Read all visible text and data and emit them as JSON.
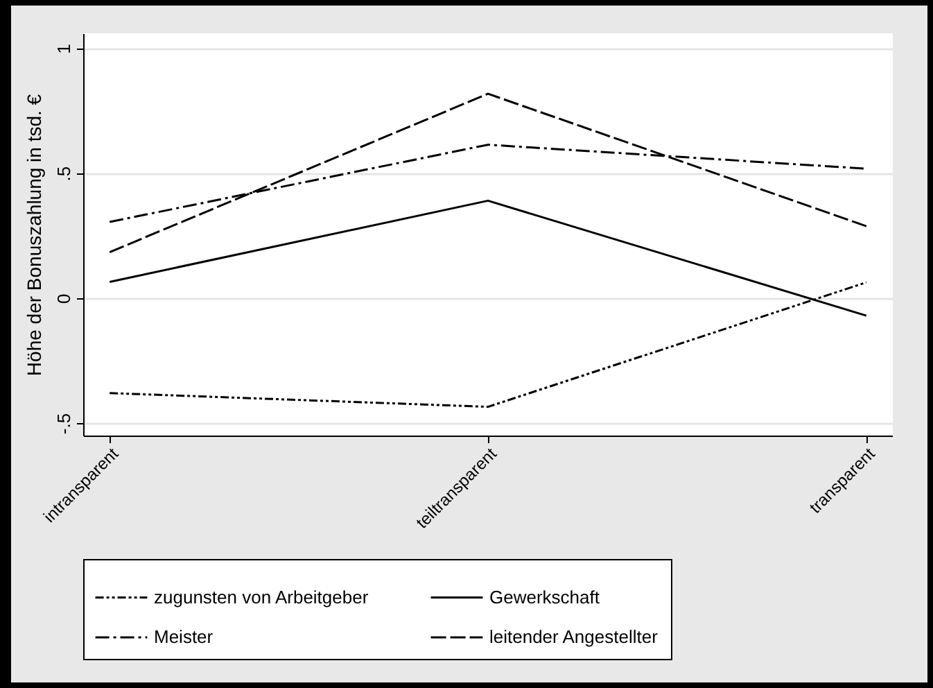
{
  "chart_data": {
    "type": "line",
    "ylabel": "Höhe der Bonuszahlung in tsd. €",
    "categories": [
      "intransparent",
      "teiltransparent",
      "transparent"
    ],
    "series": [
      {
        "name": "zugunsten von Arbeitgeber",
        "color": "#000000",
        "line_style": "dashdotdot",
        "values": [
          -0.38,
          -0.435,
          0.063
        ]
      },
      {
        "name": "Gewerkschaft",
        "color": "#000000",
        "line_style": "solid",
        "values": [
          0.065,
          0.39,
          -0.07
        ]
      },
      {
        "name": "Meister",
        "color": "#000000",
        "line_style": "dashdot",
        "values": [
          0.305,
          0.614,
          0.518
        ]
      },
      {
        "name": "leitender Angestellter",
        "color": "#000000",
        "line_style": "dashed",
        "values": [
          0.184,
          0.818,
          0.288
        ]
      }
    ],
    "ylim": [
      -0.55,
      1.06
    ],
    "yticks": [
      {
        "value": -0.5,
        "label": "-.5"
      },
      {
        "value": 0,
        "label": "0"
      },
      {
        "value": 0.5,
        "label": ".5"
      },
      {
        "value": 1,
        "label": "1"
      }
    ],
    "grid": "y",
    "legend": "bottom",
    "marker": "none"
  }
}
